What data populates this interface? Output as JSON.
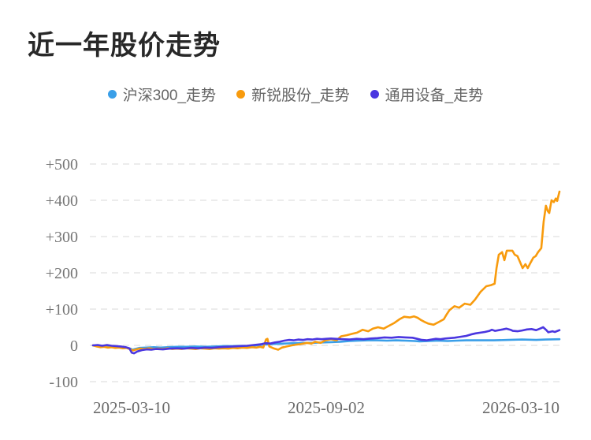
{
  "chart_data": {
    "type": "line",
    "title": "近一年股价走势",
    "legend_position": "top-center",
    "grid": "horizontal-dashed",
    "x_range": [
      "2025-03-10",
      "2026-03-10"
    ],
    "x_tick_labels": [
      "2025-03-10",
      "2025-09-02",
      "2026-03-10"
    ],
    "y_tick_labels": [
      "-100",
      "0",
      "+100",
      "+200",
      "+300",
      "+400",
      "+500"
    ],
    "ylim": [
      -100,
      500
    ],
    "y_unit": "percent_change",
    "series": [
      {
        "name": "沪深300_走势",
        "color": "#3a9fe8",
        "points": [
          [
            0,
            0
          ],
          [
            0.01,
            -2
          ],
          [
            0.02,
            -1
          ],
          [
            0.03,
            -3
          ],
          [
            0.045,
            -2
          ],
          [
            0.06,
            -4
          ],
          [
            0.07,
            -6
          ],
          [
            0.08,
            -9
          ],
          [
            0.085,
            -12
          ],
          [
            0.09,
            -10
          ],
          [
            0.1,
            -7
          ],
          [
            0.115,
            -6
          ],
          [
            0.13,
            -5
          ],
          [
            0.145,
            -6
          ],
          [
            0.16,
            -5
          ],
          [
            0.18,
            -4
          ],
          [
            0.2,
            -4
          ],
          [
            0.22,
            -3
          ],
          [
            0.24,
            -4
          ],
          [
            0.26,
            -3
          ],
          [
            0.28,
            -2
          ],
          [
            0.3,
            -2
          ],
          [
            0.32,
            -1
          ],
          [
            0.335,
            -2
          ],
          [
            0.35,
            0
          ],
          [
            0.365,
            2
          ],
          [
            0.375,
            3
          ],
          [
            0.39,
            4
          ],
          [
            0.41,
            5
          ],
          [
            0.43,
            6
          ],
          [
            0.45,
            7
          ],
          [
            0.47,
            7
          ],
          [
            0.49,
            8
          ],
          [
            0.51,
            9
          ],
          [
            0.53,
            10
          ],
          [
            0.55,
            12
          ],
          [
            0.57,
            13
          ],
          [
            0.59,
            14
          ],
          [
            0.61,
            14
          ],
          [
            0.63,
            13
          ],
          [
            0.65,
            14
          ],
          [
            0.67,
            13
          ],
          [
            0.69,
            12
          ],
          [
            0.7,
            11
          ],
          [
            0.72,
            12
          ],
          [
            0.74,
            13
          ],
          [
            0.76,
            12
          ],
          [
            0.78,
            13
          ],
          [
            0.8,
            14
          ],
          [
            0.83,
            14
          ],
          [
            0.86,
            14
          ],
          [
            0.89,
            15
          ],
          [
            0.92,
            16
          ],
          [
            0.95,
            15
          ],
          [
            0.97,
            16
          ],
          [
            1,
            17
          ]
        ]
      },
      {
        "name": "新锐股份_走势",
        "color": "#f89b0d",
        "points": [
          [
            0,
            0
          ],
          [
            0.008,
            -3
          ],
          [
            0.016,
            -5
          ],
          [
            0.024,
            -4
          ],
          [
            0.032,
            -6
          ],
          [
            0.04,
            -5
          ],
          [
            0.048,
            -7
          ],
          [
            0.056,
            -6
          ],
          [
            0.064,
            -8
          ],
          [
            0.072,
            -7
          ],
          [
            0.08,
            -11
          ],
          [
            0.086,
            -14
          ],
          [
            0.093,
            -11
          ],
          [
            0.1,
            -9
          ],
          [
            0.11,
            -10
          ],
          [
            0.12,
            -8
          ],
          [
            0.13,
            -10
          ],
          [
            0.14,
            -9
          ],
          [
            0.15,
            -10
          ],
          [
            0.16,
            -8
          ],
          [
            0.17,
            -10
          ],
          [
            0.18,
            -9
          ],
          [
            0.19,
            -10
          ],
          [
            0.2,
            -8
          ],
          [
            0.21,
            -9
          ],
          [
            0.22,
            -10
          ],
          [
            0.23,
            -8
          ],
          [
            0.24,
            -9
          ],
          [
            0.25,
            -10
          ],
          [
            0.26,
            -8
          ],
          [
            0.27,
            -9
          ],
          [
            0.28,
            -8
          ],
          [
            0.29,
            -9
          ],
          [
            0.3,
            -7
          ],
          [
            0.31,
            -8
          ],
          [
            0.32,
            -6
          ],
          [
            0.33,
            -7
          ],
          [
            0.341,
            -5
          ],
          [
            0.35,
            -6
          ],
          [
            0.358,
            -4
          ],
          [
            0.365,
            -6
          ],
          [
            0.371,
            16
          ],
          [
            0.374,
            18
          ],
          [
            0.378,
            -3
          ],
          [
            0.387,
            -8
          ],
          [
            0.397,
            -12
          ],
          [
            0.405,
            -6
          ],
          [
            0.415,
            -3
          ],
          [
            0.426,
            0
          ],
          [
            0.435,
            2
          ],
          [
            0.443,
            3
          ],
          [
            0.451,
            5
          ],
          [
            0.459,
            7
          ],
          [
            0.468,
            5
          ],
          [
            0.476,
            10
          ],
          [
            0.488,
            7
          ],
          [
            0.498,
            14
          ],
          [
            0.51,
            17
          ],
          [
            0.522,
            14
          ],
          [
            0.532,
            25
          ],
          [
            0.544,
            28
          ],
          [
            0.556,
            32
          ],
          [
            0.566,
            35
          ],
          [
            0.578,
            43
          ],
          [
            0.59,
            39
          ],
          [
            0.6,
            46
          ],
          [
            0.611,
            50
          ],
          [
            0.623,
            46
          ],
          [
            0.633,
            53
          ],
          [
            0.645,
            61
          ],
          [
            0.657,
            72
          ],
          [
            0.667,
            79
          ],
          [
            0.679,
            77
          ],
          [
            0.688,
            80
          ],
          [
            0.696,
            76
          ],
          [
            0.703,
            70
          ],
          [
            0.712,
            64
          ],
          [
            0.719,
            60
          ],
          [
            0.73,
            57
          ],
          [
            0.742,
            65
          ],
          [
            0.752,
            72
          ],
          [
            0.758,
            85
          ],
          [
            0.764,
            97
          ],
          [
            0.775,
            108
          ],
          [
            0.785,
            104
          ],
          [
            0.797,
            115
          ],
          [
            0.809,
            112
          ],
          [
            0.819,
            126
          ],
          [
            0.831,
            148
          ],
          [
            0.843,
            163
          ],
          [
            0.853,
            166
          ],
          [
            0.861,
            170
          ],
          [
            0.865,
            213
          ],
          [
            0.87,
            250
          ],
          [
            0.877,
            257
          ],
          [
            0.882,
            235
          ],
          [
            0.887,
            261
          ],
          [
            0.899,
            261
          ],
          [
            0.904,
            250
          ],
          [
            0.91,
            246
          ],
          [
            0.916,
            228
          ],
          [
            0.921,
            213
          ],
          [
            0.927,
            224
          ],
          [
            0.932,
            213
          ],
          [
            0.938,
            228
          ],
          [
            0.944,
            242
          ],
          [
            0.949,
            246
          ],
          [
            0.954,
            257
          ],
          [
            0.961,
            268
          ],
          [
            0.966,
            341
          ],
          [
            0.971,
            385
          ],
          [
            0.975,
            370
          ],
          [
            0.978,
            365
          ],
          [
            0.983,
            400
          ],
          [
            0.988,
            395
          ],
          [
            0.992,
            405
          ],
          [
            0.995,
            398
          ],
          [
            1,
            424
          ]
        ]
      },
      {
        "name": "通用设备_走势",
        "color": "#4a36e0",
        "points": [
          [
            0,
            0
          ],
          [
            0.01,
            1
          ],
          [
            0.02,
            -1
          ],
          [
            0.03,
            1
          ],
          [
            0.04,
            -1
          ],
          [
            0.05,
            -2
          ],
          [
            0.06,
            -3
          ],
          [
            0.07,
            -5
          ],
          [
            0.078,
            -8
          ],
          [
            0.083,
            -20
          ],
          [
            0.088,
            -22
          ],
          [
            0.095,
            -17
          ],
          [
            0.105,
            -13
          ],
          [
            0.115,
            -11
          ],
          [
            0.125,
            -12
          ],
          [
            0.135,
            -10
          ],
          [
            0.15,
            -11
          ],
          [
            0.165,
            -9
          ],
          [
            0.18,
            -8
          ],
          [
            0.195,
            -9
          ],
          [
            0.21,
            -7
          ],
          [
            0.225,
            -8
          ],
          [
            0.24,
            -6
          ],
          [
            0.255,
            -7
          ],
          [
            0.27,
            -5
          ],
          [
            0.285,
            -4
          ],
          [
            0.3,
            -3
          ],
          [
            0.315,
            -2
          ],
          [
            0.33,
            -1
          ],
          [
            0.345,
            1
          ],
          [
            0.36,
            3
          ],
          [
            0.37,
            6
          ],
          [
            0.38,
            5
          ],
          [
            0.39,
            8
          ],
          [
            0.4,
            10
          ],
          [
            0.41,
            13
          ],
          [
            0.42,
            15
          ],
          [
            0.43,
            14
          ],
          [
            0.44,
            16
          ],
          [
            0.45,
            15
          ],
          [
            0.46,
            17
          ],
          [
            0.47,
            16
          ],
          [
            0.48,
            18
          ],
          [
            0.49,
            17
          ],
          [
            0.5,
            18
          ],
          [
            0.51,
            19
          ],
          [
            0.52,
            18
          ],
          [
            0.535,
            17
          ],
          [
            0.55,
            16
          ],
          [
            0.565,
            18
          ],
          [
            0.58,
            17
          ],
          [
            0.595,
            19
          ],
          [
            0.61,
            20
          ],
          [
            0.625,
            22
          ],
          [
            0.64,
            21
          ],
          [
            0.655,
            23
          ],
          [
            0.67,
            22
          ],
          [
            0.685,
            21
          ],
          [
            0.695,
            18
          ],
          [
            0.705,
            15
          ],
          [
            0.715,
            14
          ],
          [
            0.725,
            16
          ],
          [
            0.735,
            18
          ],
          [
            0.745,
            17
          ],
          [
            0.755,
            19
          ],
          [
            0.765,
            20
          ],
          [
            0.775,
            21
          ],
          [
            0.785,
            23
          ],
          [
            0.8,
            26
          ],
          [
            0.81,
            30
          ],
          [
            0.82,
            33
          ],
          [
            0.83,
            35
          ],
          [
            0.84,
            37
          ],
          [
            0.85,
            40
          ],
          [
            0.855,
            43
          ],
          [
            0.862,
            40
          ],
          [
            0.87,
            42
          ],
          [
            0.878,
            44
          ],
          [
            0.886,
            46
          ],
          [
            0.895,
            43
          ],
          [
            0.9,
            40
          ],
          [
            0.91,
            39
          ],
          [
            0.92,
            41
          ],
          [
            0.93,
            44
          ],
          [
            0.94,
            45
          ],
          [
            0.95,
            42
          ],
          [
            0.958,
            46
          ],
          [
            0.965,
            50
          ],
          [
            0.972,
            42
          ],
          [
            0.976,
            36
          ],
          [
            0.985,
            39
          ],
          [
            0.99,
            37
          ],
          [
            1,
            42
          ]
        ]
      }
    ]
  }
}
